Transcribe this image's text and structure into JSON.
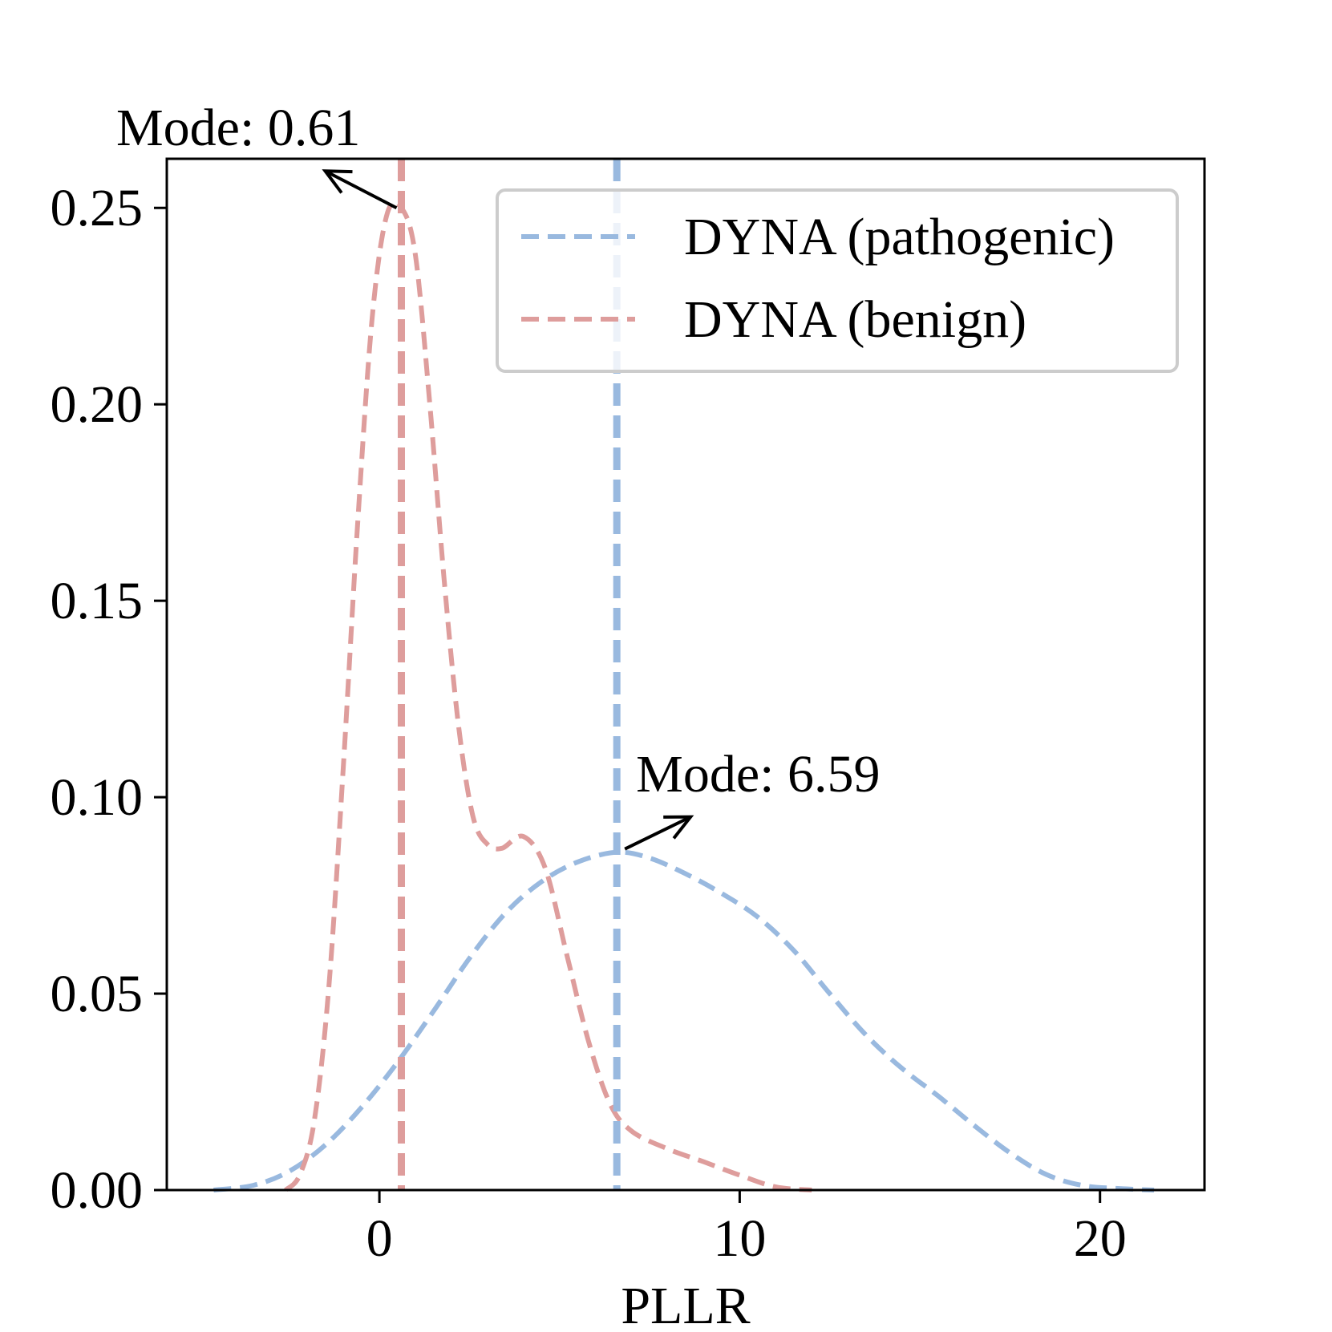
{
  "chart_data": {
    "type": "line",
    "title": "",
    "xlabel": "PLLR",
    "ylabel": "",
    "xlim": [
      -5.9,
      22.9
    ],
    "ylim": [
      0,
      0.2625
    ],
    "xticks": [
      0,
      10,
      20
    ],
    "xtick_labels": [
      "0",
      "10",
      "20"
    ],
    "yticks": [
      0.0,
      0.05,
      0.1,
      0.15,
      0.2,
      0.25
    ],
    "ytick_labels": [
      "0.00",
      "0.05",
      "0.10",
      "0.15",
      "0.20",
      "0.25"
    ],
    "grid": false,
    "legend": {
      "placement": "upper-right"
    },
    "series": [
      {
        "name": "DYNA (pathogenic)",
        "color": "#99b9df",
        "style": "dashed",
        "mode": 6.59,
        "mode_label": "Mode: 6.59",
        "x": [
          -4.6,
          -3.5,
          -2.5,
          -1.5,
          -0.5,
          0.5,
          1.5,
          2.5,
          3.5,
          4.5,
          5.5,
          6.59,
          7.5,
          8.5,
          9.5,
          10.5,
          11.5,
          12.5,
          13.5,
          14.5,
          15.5,
          16.5,
          17.5,
          18.5,
          19.5,
          20.5,
          21.5
        ],
        "y": [
          0.0,
          0.0012,
          0.0048,
          0.0115,
          0.021,
          0.0325,
          0.0455,
          0.059,
          0.0705,
          0.0785,
          0.0835,
          0.086,
          0.0845,
          0.0805,
          0.0755,
          0.0695,
          0.061,
          0.05,
          0.0395,
          0.031,
          0.024,
          0.0165,
          0.0095,
          0.004,
          0.0012,
          0.0004,
          0.0
        ]
      },
      {
        "name": "DYNA (benign)",
        "color": "#de9d9c",
        "style": "dashed",
        "mode": 0.61,
        "mode_label": "Mode: 0.61",
        "x": [
          -2.6,
          -2.2,
          -1.8,
          -1.4,
          -1.0,
          -0.6,
          -0.2,
          0.2,
          0.61,
          1.0,
          1.4,
          1.8,
          2.2,
          2.6,
          3.0,
          3.4,
          4.0,
          4.6,
          5.2,
          5.8,
          6.4,
          7.0,
          8.0,
          9.0,
          10.0,
          11.0,
          12.0
        ],
        "y": [
          0.0,
          0.004,
          0.018,
          0.052,
          0.108,
          0.17,
          0.222,
          0.248,
          0.25,
          0.238,
          0.2,
          0.155,
          0.118,
          0.095,
          0.088,
          0.087,
          0.09,
          0.082,
          0.06,
          0.038,
          0.022,
          0.015,
          0.0105,
          0.0072,
          0.0038,
          0.0008,
          0.0
        ]
      }
    ]
  }
}
